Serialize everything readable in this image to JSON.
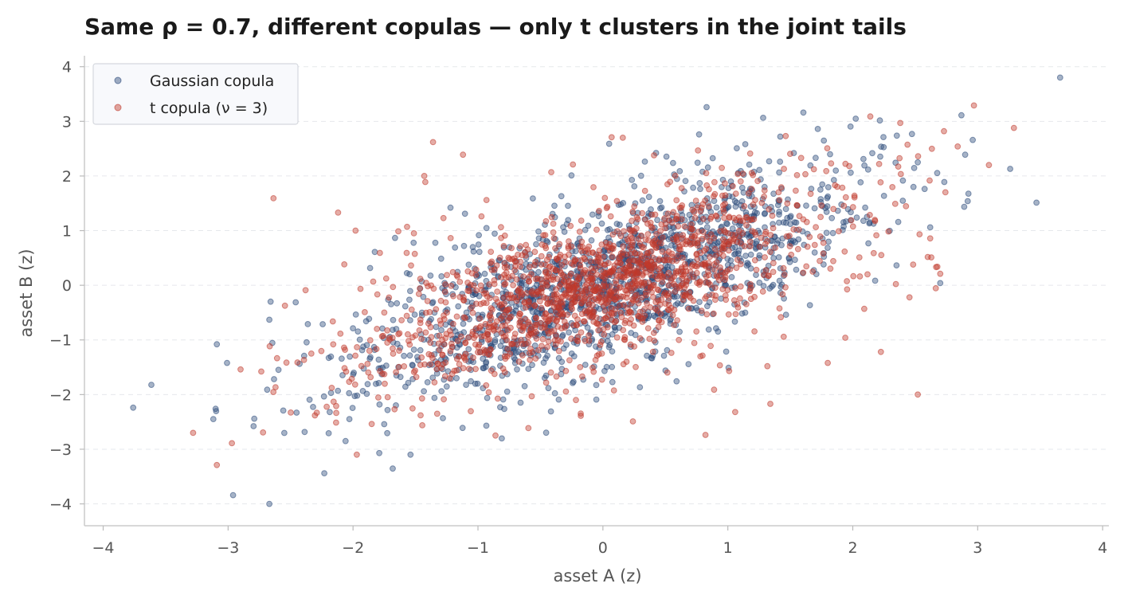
{
  "chart_data": {
    "type": "scatter",
    "title": "Same ρ = 0.7, different copulas — only t clusters in the joint tails",
    "xlabel": "asset A (z)",
    "ylabel": "asset B (z)",
    "xlim": [
      -4.15,
      4.05
    ],
    "ylim": [
      -4.4,
      4.2
    ],
    "x_ticks": [
      -4,
      -3,
      -2,
      -1,
      0,
      1,
      2,
      3,
      4
    ],
    "y_ticks": [
      -4,
      -3,
      -2,
      -1,
      0,
      1,
      2,
      3,
      4
    ],
    "x_tick_labels": [
      "−4",
      "−3",
      "−2",
      "−1",
      "0",
      "1",
      "2",
      "3",
      "4"
    ],
    "y_tick_labels": [
      "−4",
      "−3",
      "−2",
      "−1",
      "0",
      "1",
      "2",
      "3",
      "4"
    ],
    "grid": "horizontal dashed",
    "legend_position": "top-left",
    "rho": 0.7,
    "series": [
      {
        "name": "Gaussian copula",
        "color": "#2c4a7a",
        "generator": "gaussian",
        "n": 1500,
        "points": [
          [
            3.66,
            3.8
          ],
          [
            -3.76,
            -2.24
          ],
          [
            -3.1,
            -2.26
          ],
          [
            -3.09,
            -1.08
          ],
          [
            -2.96,
            -3.84
          ],
          [
            -2.67,
            -4.0
          ],
          [
            -2.66,
            -0.3
          ],
          [
            -2.67,
            -0.63
          ],
          [
            -2.23,
            -3.44
          ],
          [
            -2.06,
            -2.85
          ],
          [
            0.83,
            3.26
          ],
          [
            0.77,
            2.76
          ],
          [
            1.42,
            2.72
          ],
          [
            1.72,
            2.86
          ],
          [
            2.52,
            2.25
          ],
          [
            2.9,
            2.39
          ],
          [
            2.96,
            2.66
          ],
          [
            3.26,
            2.13
          ],
          [
            2.7,
            0.04
          ],
          [
            2.92,
            1.54
          ],
          [
            2.62,
            1.06
          ],
          [
            -1.54,
            -3.1
          ],
          [
            -1.79,
            -3.07
          ],
          [
            0.05,
            2.59
          ],
          [
            -1.22,
            1.42
          ]
        ]
      },
      {
        "name": "t copula (ν = 3)",
        "color": "#c0392b",
        "generator": "student-t",
        "nu": 3,
        "n": 1500,
        "points": [
          [
            -3.28,
            -2.7
          ],
          [
            -3.09,
            -3.29
          ],
          [
            -2.97,
            -2.89
          ],
          [
            -2.9,
            -1.54
          ],
          [
            2.97,
            3.29
          ],
          [
            3.29,
            2.88
          ],
          [
            2.14,
            3.09
          ],
          [
            2.38,
            2.97
          ],
          [
            3.09,
            2.2
          ],
          [
            -1.36,
            2.62
          ],
          [
            -1.12,
            2.39
          ],
          [
            -1.43,
            2.0
          ],
          [
            -2.12,
            1.33
          ],
          [
            -1.98,
            1.0
          ],
          [
            2.52,
            -2.0
          ],
          [
            1.94,
            -0.96
          ],
          [
            1.34,
            -2.17
          ],
          [
            0.24,
            -2.49
          ],
          [
            -0.86,
            -2.75
          ],
          [
            -1.97,
            -3.1
          ],
          [
            -0.24,
            2.21
          ],
          [
            2.84,
            2.54
          ],
          [
            2.73,
            2.82
          ],
          [
            1.8,
            -1.42
          ],
          [
            0.89,
            -1.91
          ]
        ]
      }
    ]
  }
}
